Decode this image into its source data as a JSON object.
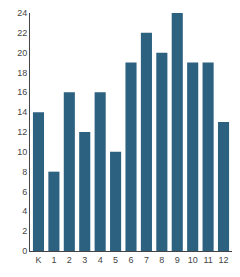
{
  "chart_data": {
    "type": "bar",
    "categories": [
      "K",
      "1",
      "2",
      "3",
      "4",
      "5",
      "6",
      "7",
      "8",
      "9",
      "10",
      "11",
      "12"
    ],
    "values": [
      14,
      8,
      16,
      12,
      16,
      10,
      19,
      22,
      20,
      24,
      19,
      19,
      13
    ],
    "color": "#2d6180",
    "ylim": [
      0,
      24
    ],
    "yticks": [
      0,
      2,
      4,
      6,
      8,
      10,
      12,
      14,
      16,
      18,
      20,
      22,
      24
    ],
    "grid": false
  }
}
